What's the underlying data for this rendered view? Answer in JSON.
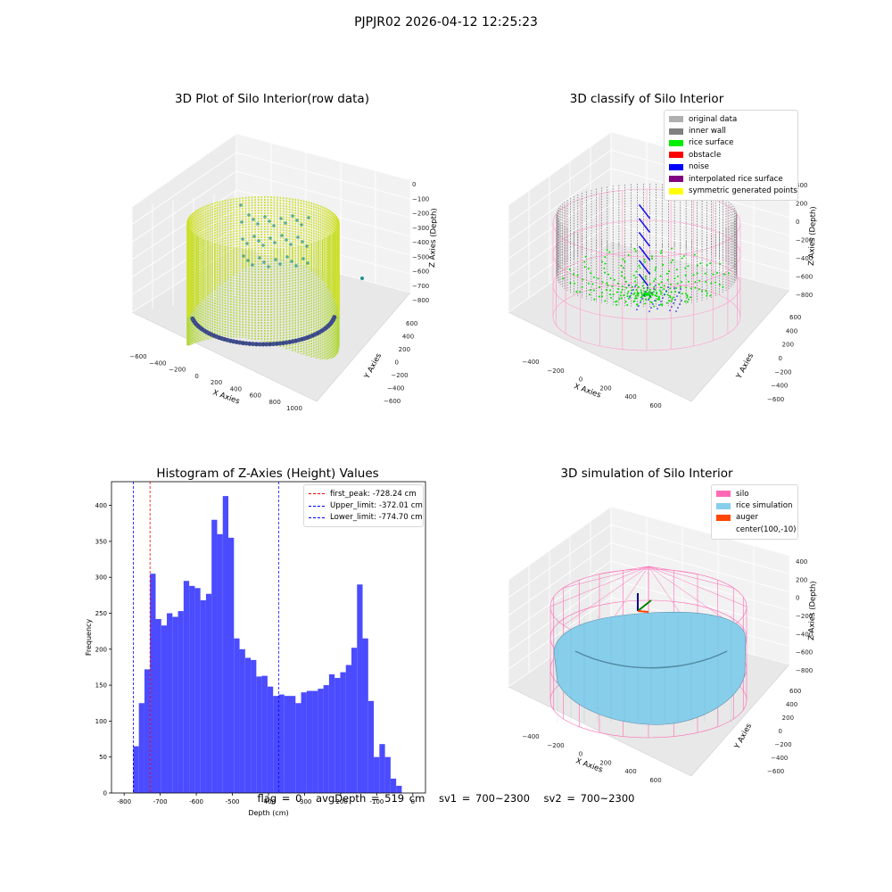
{
  "suptitle": "PJPJR02 2026-04-12 12:25:23",
  "panels": {
    "raw": {
      "title": "3D Plot of Silo Interior(row data)",
      "xlabel": "X Axies",
      "ylabel": "Y Axies",
      "zlabel": "Z Axies (Depth)",
      "xticks": [
        "−600",
        "−400",
        "−200",
        "0",
        "200",
        "400",
        "600",
        "800",
        "1000"
      ],
      "yticks": [
        "−600",
        "−400",
        "−200",
        "0",
        "200",
        "400",
        "600"
      ],
      "zticks": [
        "0",
        "−100",
        "−200",
        "−300",
        "−400",
        "−500",
        "−600",
        "−700",
        "−800"
      ]
    },
    "classify": {
      "title": "3D classify of Silo Interior",
      "xlabel": "X Axies",
      "ylabel": "Y Axies",
      "zlabel": "Z Axies (Depth)",
      "xticks": [
        "−400",
        "−200",
        "0",
        "200",
        "400",
        "600"
      ],
      "yticks": [
        "−600",
        "−400",
        "−200",
        "0",
        "200",
        "400",
        "600"
      ],
      "zticks": [
        "400",
        "200",
        "0",
        "−200",
        "−400",
        "−600",
        "−800"
      ],
      "legend": [
        {
          "label": "original data",
          "color": "#b0b0b0"
        },
        {
          "label": "inner wall",
          "color": "#808080"
        },
        {
          "label": "rice surface",
          "color": "#00ee00"
        },
        {
          "label": "obstacle",
          "color": "#ff0000"
        },
        {
          "label": "noise",
          "color": "#0000ff"
        },
        {
          "label": "interpolated rice surface",
          "color": "#800080"
        },
        {
          "label": "symmetric generated points",
          "color": "#ffff00"
        }
      ]
    },
    "simulation": {
      "title": "3D simulation of Silo Interior",
      "xlabel": "X Axies",
      "ylabel": "Y Axies",
      "zlabel": "Z Axies (Depth)",
      "xticks": [
        "−400",
        "−200",
        "0",
        "200",
        "400",
        "600"
      ],
      "yticks": [
        "−600",
        "−400",
        "−200",
        "0",
        "200",
        "400",
        "600"
      ],
      "zticks": [
        "400",
        "200",
        "0",
        "−200",
        "−400",
        "−600",
        "−800"
      ],
      "legend": [
        {
          "label": "silo",
          "color": "#ff69b4"
        },
        {
          "label": "rice simulation",
          "color": "#87ceeb"
        },
        {
          "label": "auger",
          "color": "#ff4500"
        },
        {
          "label": "center(100,-10)",
          "color": "#ffffff"
        }
      ]
    }
  },
  "chart_data": {
    "type": "bar",
    "title": "Histogram of Z-Axies (Height) Values",
    "xlabel": "Depth (cm)",
    "ylabel": "Frequency",
    "bar_color": "#4b4bff",
    "xlim": [
      -835,
      35
    ],
    "ylim": [
      0,
      433
    ],
    "xticks": [
      -800,
      -700,
      -600,
      -500,
      -400,
      -300,
      -200,
      -100,
      0
    ],
    "yticks": [
      0,
      50,
      100,
      150,
      200,
      250,
      300,
      350,
      400
    ],
    "bin_start": -774.7,
    "bin_width": 15.5,
    "values": [
      65,
      125,
      172,
      305,
      242,
      233,
      250,
      245,
      253,
      295,
      288,
      285,
      268,
      277,
      380,
      360,
      413,
      355,
      215,
      200,
      188,
      185,
      162,
      163,
      148,
      135,
      137,
      135,
      135,
      125,
      140,
      142,
      142,
      145,
      150,
      165,
      160,
      168,
      178,
      202,
      290,
      215,
      128,
      50,
      68,
      50,
      20,
      10
    ],
    "vlines": [
      {
        "label": "first_peak: -728.24 cm",
        "x": -728.24,
        "color": "#ff0000"
      },
      {
        "label": "Upper_limit: -372.01 cm",
        "x": -372.01,
        "color": "#0000ff"
      },
      {
        "label": "Lower_limit: -774.70 cm",
        "x": -774.7,
        "color": "#0000ff"
      }
    ]
  },
  "footer": {
    "flag": "flag = 0",
    "avg": "avgDepth = 519 cm",
    "sv1": "sv1 = 700~2300",
    "sv2": "sv2 = 700~2300"
  }
}
